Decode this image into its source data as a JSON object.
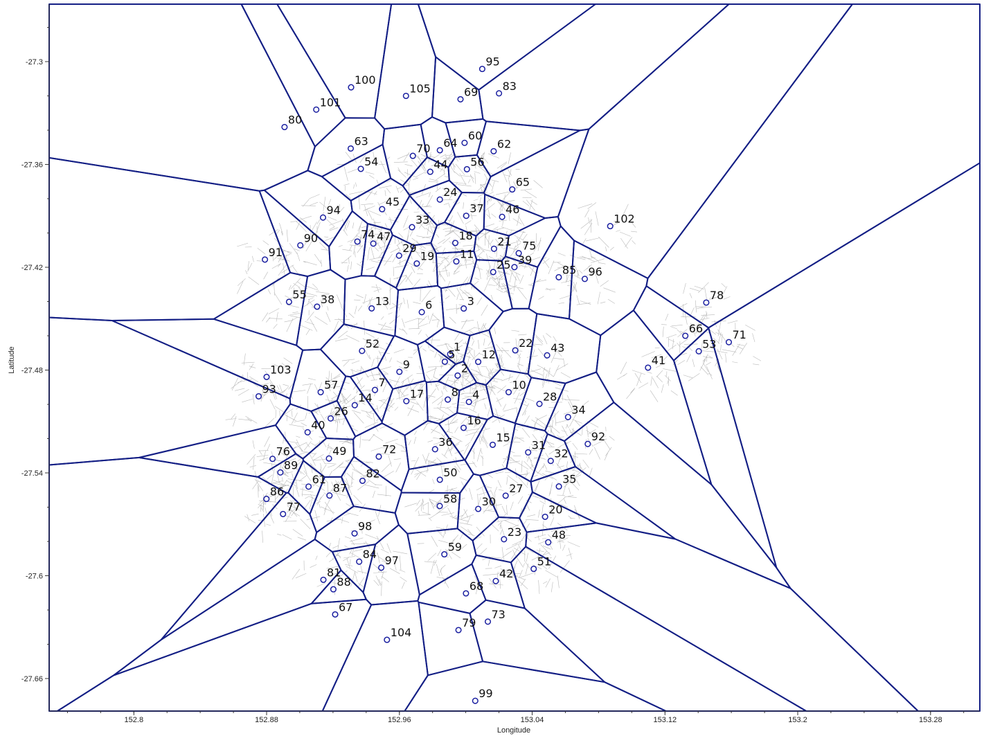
{
  "chart_data": {
    "type": "voronoi-map",
    "xlabel": "Longitude",
    "ylabel": "Latitude",
    "x_ticks": [
      "152.8",
      "152.88",
      "152.96",
      "153.04",
      "153.12",
      "153.2",
      "153.28"
    ],
    "y_ticks": [
      "-27.3",
      "-27.36",
      "-27.42",
      "-27.48",
      "-27.54",
      "-27.6",
      "-27.66"
    ],
    "colors": {
      "edges": "#141f85",
      "markers": "#1a1fa0",
      "streets": "#b9b9b9"
    },
    "sites": [
      {
        "id": "1",
        "lon": 152.9906,
        "lat": -27.4707
      },
      {
        "id": "2",
        "lon": 152.9951,
        "lat": -27.4832
      },
      {
        "id": "3",
        "lon": 152.9988,
        "lat": -27.4441
      },
      {
        "id": "4",
        "lon": 153.0019,
        "lat": -27.4986
      },
      {
        "id": "5",
        "lon": 152.9874,
        "lat": -27.4751
      },
      {
        "id": "6",
        "lon": 152.9735,
        "lat": -27.4462
      },
      {
        "id": "7",
        "lon": 152.9453,
        "lat": -27.4916
      },
      {
        "id": "8",
        "lon": 152.9892,
        "lat": -27.4972
      },
      {
        "id": "9",
        "lon": 152.96,
        "lat": -27.481
      },
      {
        "id": "10",
        "lon": 153.0258,
        "lat": -27.4929
      },
      {
        "id": "11",
        "lon": 152.9943,
        "lat": -27.4166
      },
      {
        "id": "12",
        "lon": 153.0075,
        "lat": -27.4752
      },
      {
        "id": "13",
        "lon": 152.9433,
        "lat": -27.444
      },
      {
        "id": "14",
        "lon": 152.9331,
        "lat": -27.5005
      },
      {
        "id": "15",
        "lon": 153.0162,
        "lat": -27.5236
      },
      {
        "id": "16",
        "lon": 152.9987,
        "lat": -27.5137
      },
      {
        "id": "17",
        "lon": 152.9642,
        "lat": -27.4981
      },
      {
        "id": "18",
        "lon": 152.9937,
        "lat": -27.4058
      },
      {
        "id": "19",
        "lon": 152.9705,
        "lat": -27.4178
      },
      {
        "id": "20",
        "lon": 153.0478,
        "lat": -27.5656
      },
      {
        "id": "21",
        "lon": 153.017,
        "lat": -27.4092
      },
      {
        "id": "22",
        "lon": 153.0298,
        "lat": -27.4685
      },
      {
        "id": "23",
        "lon": 153.023,
        "lat": -27.5787
      },
      {
        "id": "24",
        "lon": 152.9844,
        "lat": -27.3805
      },
      {
        "id": "25",
        "lon": 153.0165,
        "lat": -27.4228
      },
      {
        "id": "26",
        "lon": 152.9186,
        "lat": -27.5082
      },
      {
        "id": "27",
        "lon": 153.024,
        "lat": -27.5533
      },
      {
        "id": "28",
        "lon": 153.0444,
        "lat": -27.4997
      },
      {
        "id": "29",
        "lon": 152.9598,
        "lat": -27.4132
      },
      {
        "id": "30",
        "lon": 153.0075,
        "lat": -27.561
      },
      {
        "id": "31",
        "lon": 153.0376,
        "lat": -27.528
      },
      {
        "id": "32",
        "lon": 153.0512,
        "lat": -27.533
      },
      {
        "id": "33",
        "lon": 152.9676,
        "lat": -27.3966
      },
      {
        "id": "34",
        "lon": 153.0616,
        "lat": -27.5074
      },
      {
        "id": "35",
        "lon": 153.0561,
        "lat": -27.5479
      },
      {
        "id": "36",
        "lon": 152.9815,
        "lat": -27.5262
      },
      {
        "id": "37",
        "lon": 153.0003,
        "lat": -27.39
      },
      {
        "id": "38",
        "lon": 152.9104,
        "lat": -27.443
      },
      {
        "id": "39",
        "lon": 153.0293,
        "lat": -27.4199
      },
      {
        "id": "40",
        "lon": 152.9047,
        "lat": -27.5163
      },
      {
        "id": "41",
        "lon": 153.1098,
        "lat": -27.4786
      },
      {
        "id": "42",
        "lon": 153.0181,
        "lat": -27.6031
      },
      {
        "id": "43",
        "lon": 153.049,
        "lat": -27.4714
      },
      {
        "id": "44",
        "lon": 152.9786,
        "lat": -27.3643
      },
      {
        "id": "45",
        "lon": 152.9496,
        "lat": -27.3861
      },
      {
        "id": "46",
        "lon": 153.0219,
        "lat": -27.3906
      },
      {
        "id": "47",
        "lon": 152.9443,
        "lat": -27.4062
      },
      {
        "id": "48",
        "lon": 153.0497,
        "lat": -27.5805
      },
      {
        "id": "49",
        "lon": 152.9176,
        "lat": -27.5316
      },
      {
        "id": "50",
        "lon": 152.9844,
        "lat": -27.544
      },
      {
        "id": "51",
        "lon": 153.0409,
        "lat": -27.596
      },
      {
        "id": "52",
        "lon": 152.9375,
        "lat": -27.4688
      },
      {
        "id": "53",
        "lon": 153.1404,
        "lat": -27.469
      },
      {
        "id": "54",
        "lon": 152.9368,
        "lat": -27.3626
      },
      {
        "id": "55",
        "lon": 152.8935,
        "lat": -27.4402
      },
      {
        "id": "56",
        "lon": 153.0007,
        "lat": -27.3628
      },
      {
        "id": "57",
        "lon": 152.9126,
        "lat": -27.4929
      },
      {
        "id": "58",
        "lon": 152.9843,
        "lat": -27.5593
      },
      {
        "id": "59",
        "lon": 152.9871,
        "lat": -27.5875
      },
      {
        "id": "60",
        "lon": 152.9993,
        "lat": -27.3474
      },
      {
        "id": "61",
        "lon": 152.9053,
        "lat": -27.548
      },
      {
        "id": "62",
        "lon": 153.0168,
        "lat": -27.3523
      },
      {
        "id": "63",
        "lon": 152.9307,
        "lat": -27.3507
      },
      {
        "id": "64",
        "lon": 152.9844,
        "lat": -27.3517
      },
      {
        "id": "65",
        "lon": 153.028,
        "lat": -27.3746
      },
      {
        "id": "66",
        "lon": 153.1323,
        "lat": -27.46
      },
      {
        "id": "67",
        "lon": 152.9213,
        "lat": -27.6226
      },
      {
        "id": "68",
        "lon": 153.0001,
        "lat": -27.6103
      },
      {
        "id": "69",
        "lon": 152.9968,
        "lat": -27.322
      },
      {
        "id": "70",
        "lon": 152.9681,
        "lat": -27.355
      },
      {
        "id": "71",
        "lon": 153.1585,
        "lat": -27.4637
      },
      {
        "id": "72",
        "lon": 152.9476,
        "lat": -27.5305
      },
      {
        "id": "73",
        "lon": 153.0133,
        "lat": -27.6268
      },
      {
        "id": "74",
        "lon": 152.9347,
        "lat": -27.405
      },
      {
        "id": "75",
        "lon": 153.0319,
        "lat": -27.4118
      },
      {
        "id": "76",
        "lon": 152.8836,
        "lat": -27.5318
      },
      {
        "id": "77",
        "lon": 152.8899,
        "lat": -27.564
      },
      {
        "id": "78",
        "lon": 153.1449,
        "lat": -27.4406
      },
      {
        "id": "79",
        "lon": 152.9956,
        "lat": -27.6317
      },
      {
        "id": "80",
        "lon": 152.8908,
        "lat": -27.3382
      },
      {
        "id": "81",
        "lon": 152.9142,
        "lat": -27.6024
      },
      {
        "id": "82",
        "lon": 152.9378,
        "lat": -27.5446
      },
      {
        "id": "83",
        "lon": 153.02,
        "lat": -27.3185
      },
      {
        "id": "84",
        "lon": 152.9358,
        "lat": -27.5918
      },
      {
        "id": "85",
        "lon": 153.056,
        "lat": -27.4258
      },
      {
        "id": "86",
        "lon": 152.8799,
        "lat": -27.5552
      },
      {
        "id": "87",
        "lon": 152.9179,
        "lat": -27.5532
      },
      {
        "id": "88",
        "lon": 152.9202,
        "lat": -27.6079
      },
      {
        "id": "89",
        "lon": 152.8883,
        "lat": -27.5397
      },
      {
        "id": "90",
        "lon": 152.9003,
        "lat": -27.4072
      },
      {
        "id": "91",
        "lon": 152.879,
        "lat": -27.4155
      },
      {
        "id": "92",
        "lon": 153.0735,
        "lat": -27.5231
      },
      {
        "id": "93",
        "lon": 152.8752,
        "lat": -27.4953
      },
      {
        "id": "94",
        "lon": 152.914,
        "lat": -27.391
      },
      {
        "id": "95",
        "lon": 153.0099,
        "lat": -27.3043
      },
      {
        "id": "96",
        "lon": 153.0717,
        "lat": -27.4268
      },
      {
        "id": "97",
        "lon": 152.9491,
        "lat": -27.5953
      },
      {
        "id": "98",
        "lon": 152.933,
        "lat": -27.5753
      },
      {
        "id": "99",
        "lon": 153.0057,
        "lat": -27.673
      },
      {
        "id": "100",
        "lon": 152.9309,
        "lat": -27.315
      },
      {
        "id": "101",
        "lon": 152.9099,
        "lat": -27.328
      },
      {
        "id": "102",
        "lon": 153.087,
        "lat": -27.396
      },
      {
        "id": "103",
        "lon": 152.88,
        "lat": -27.484
      },
      {
        "id": "104",
        "lon": 152.9525,
        "lat": -27.6374
      },
      {
        "id": "105",
        "lon": 152.964,
        "lat": -27.32
      }
    ]
  }
}
